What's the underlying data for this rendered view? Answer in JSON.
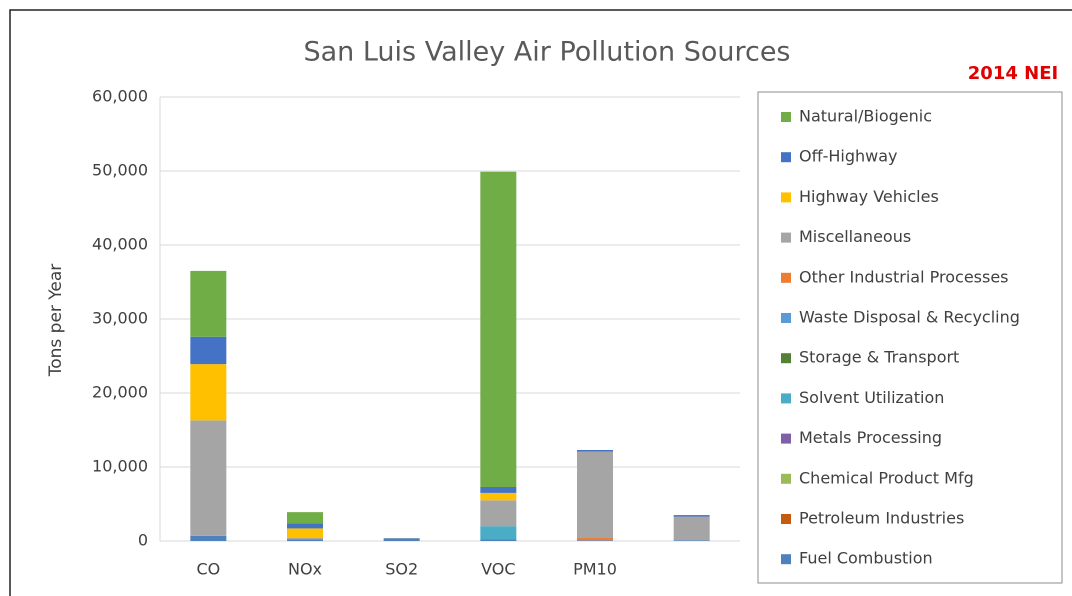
{
  "chart_data": {
    "type": "stacked_bar",
    "title": "San Luis Valley Air Pollution Sources",
    "annotation": "2014 NEI",
    "y_label": "Tons per Year",
    "categories": [
      "CO",
      "NOx",
      "SO2",
      "VOC",
      "PM10",
      null
    ],
    "series": [
      {
        "name": "Natural/Biogenic",
        "color": "#70ad47",
        "values": [
          8900,
          1500,
          0,
          42600,
          0,
          0
        ]
      },
      {
        "name": "Off-Highway",
        "color": "#4472c4",
        "values": [
          3700,
          700,
          0,
          800,
          200,
          200
        ]
      },
      {
        "name": "Highway Vehicles",
        "color": "#ffc000",
        "values": [
          7600,
          1300,
          0,
          1000,
          0,
          0
        ]
      },
      {
        "name": "Miscellaneous",
        "color": "#a5a5a5",
        "values": [
          15600,
          200,
          50,
          3500,
          11600,
          3200
        ]
      },
      {
        "name": "Other Industrial Processes",
        "color": "#ed7d31",
        "values": [
          0,
          0,
          0,
          0,
          400,
          0
        ]
      },
      {
        "name": "Waste Disposal & Recycling",
        "color": "#5b9bd5",
        "values": [
          0,
          0,
          0,
          0,
          0,
          0
        ]
      },
      {
        "name": "Storage & Transport",
        "color": "#548235",
        "values": [
          0,
          0,
          0,
          0,
          0,
          0
        ]
      },
      {
        "name": "Solvent Utilization",
        "color": "#4bacc6",
        "values": [
          0,
          0,
          0,
          1800,
          0,
          0
        ]
      },
      {
        "name": "Metals Processing",
        "color": "#7f5fa8",
        "values": [
          0,
          0,
          0,
          0,
          0,
          0
        ]
      },
      {
        "name": "Chemical Product Mfg",
        "color": "#9bbb59",
        "values": [
          0,
          0,
          0,
          0,
          0,
          0
        ]
      },
      {
        "name": "Petroleum Industries",
        "color": "#c55a11",
        "values": [
          0,
          0,
          0,
          0,
          0,
          0
        ]
      },
      {
        "name": "Fuel Combustion",
        "color": "#4f81bd",
        "values": [
          700,
          200,
          350,
          200,
          100,
          100
        ]
      }
    ],
    "ylim": [
      0,
      60000
    ],
    "yticks": [
      0,
      {
        "value": 10000,
        "label": "10,000"
      },
      {
        "value": 20000,
        "label": "20,000"
      },
      {
        "value": 30000,
        "label": "30,000"
      },
      {
        "value": 40000,
        "label": "40,000"
      },
      {
        "value": 50000,
        "label": "50,000"
      },
      {
        "value": 60000,
        "label": "60,000"
      }
    ],
    "grid": true
  }
}
